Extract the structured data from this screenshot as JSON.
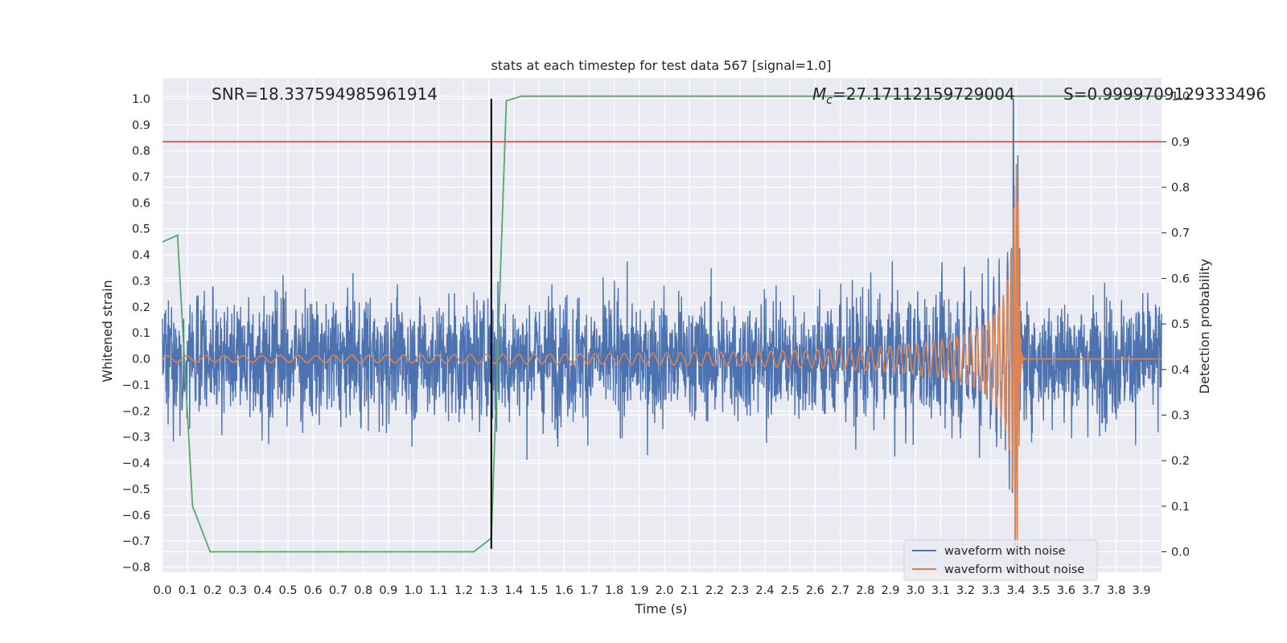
{
  "chart_data": {
    "type": "line",
    "title": "stats at each timestep for test data 567 [signal=1.0]",
    "xlabel": "Time (s)",
    "ylabel": "Whitened strain",
    "y2label": "Detection probability",
    "xlim": [
      0.0,
      3.98
    ],
    "ylim": [
      -0.82,
      1.08
    ],
    "y2lim": [
      -0.045,
      1.04
    ],
    "x_ticks": [
      "0.0",
      "0.1",
      "0.2",
      "0.3",
      "0.4",
      "0.5",
      "0.6",
      "0.7",
      "0.8",
      "0.9",
      "1.0",
      "1.1",
      "1.2",
      "1.3",
      "1.4",
      "1.5",
      "1.6",
      "1.7",
      "1.8",
      "1.9",
      "2.0",
      "2.1",
      "2.2",
      "2.3",
      "2.4",
      "2.5",
      "2.6",
      "2.7",
      "2.8",
      "2.9",
      "3.0",
      "3.1",
      "3.2",
      "3.3",
      "3.4",
      "3.5",
      "3.6",
      "3.7",
      "3.8",
      "3.9"
    ],
    "y_ticks": [
      "1.0",
      "0.9",
      "0.8",
      "0.7",
      "0.6",
      "0.5",
      "0.4",
      "0.3",
      "0.2",
      "0.1",
      "0.0",
      "−0.1",
      "−0.2",
      "−0.3",
      "−0.4",
      "−0.5",
      "−0.6",
      "−0.7",
      "−0.8"
    ],
    "y2_ticks": [
      "1.0",
      "0.9",
      "0.8",
      "0.7",
      "0.6",
      "0.5",
      "0.4",
      "0.3",
      "0.2",
      "0.1",
      "0.0"
    ],
    "grid": true,
    "legend_position": "lower-right",
    "annotations": {
      "snr": "SNR=18.337594985961914",
      "mc_symbol": "M",
      "mc_subscript": "c",
      "mc_value": "=27.17112159729004",
      "s": "S=0.9999709129333496"
    },
    "series": [
      {
        "name": "waveform with noise",
        "color": "#4c72b0",
        "description_hidden": true,
        "noise_std": 0.165,
        "peak": {
          "x": 3.39,
          "y": 1.0
        }
      },
      {
        "name": "waveform without noise",
        "color": "#dd8452",
        "chirp_start_amplitude": 0.012,
        "merger_x": 3.41,
        "peak_value": 0.75,
        "min_value": -0.75
      },
      {
        "axis": "y2",
        "color": "#55a868",
        "x": [
          0.0,
          0.06,
          0.12,
          0.19,
          1.24,
          1.31,
          1.37,
          1.43,
          3.98
        ],
        "values": [
          0.68,
          0.695,
          0.1,
          0.0,
          0.0,
          0.03,
          0.99,
          1.0,
          1.0
        ]
      }
    ],
    "threshold_line": {
      "axis": "y2",
      "value": 0.9,
      "color": "#c44e52"
    },
    "vertical_line": {
      "x": 1.31,
      "y_from": -0.73,
      "y_to": 1.0,
      "color": "#000000"
    }
  }
}
